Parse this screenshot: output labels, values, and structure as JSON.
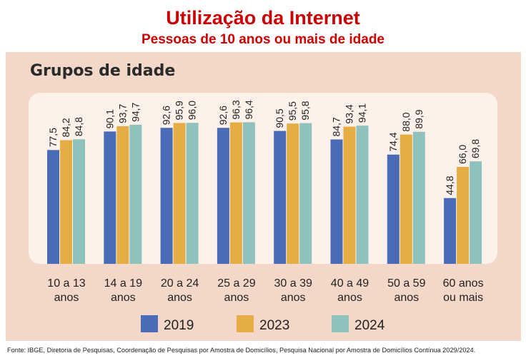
{
  "title": "Utilização da Internet",
  "subtitle": "Pessoas de 10 anos ou mais de idade",
  "panel_heading": "Grupos de idade",
  "source": "Fonte: IBGE, Diretoria de Pesquisas, Coordenação de Pesquisas por Amostra de Domicílios, Pesquisa Nacional por Amostra de Domicílios Contínua 2029/2024.",
  "chart_data": {
    "type": "bar",
    "title": "Utilização da Internet",
    "subtitle": "Pessoas de 10 anos ou mais de idade",
    "xlabel": "",
    "ylabel": "",
    "ylim": [
      0,
      100
    ],
    "grid": false,
    "legend_placement": "bottom",
    "categories": [
      [
        "10 a 13",
        "anos"
      ],
      [
        "14 a 19",
        "anos"
      ],
      [
        "20 a 24",
        "anos"
      ],
      [
        "25 a 29",
        "anos"
      ],
      [
        "30 a 39",
        "anos"
      ],
      [
        "40 a 49",
        "anos"
      ],
      [
        "50 a 59",
        "anos"
      ],
      [
        "60 anos",
        "ou mais"
      ]
    ],
    "series": [
      {
        "name": "2019",
        "color": "#4a6cb7",
        "values": [
          77.5,
          90.1,
          92.6,
          92.6,
          90.5,
          84.7,
          74.4,
          44.8
        ]
      },
      {
        "name": "2023",
        "color": "#e5ad44",
        "values": [
          84.2,
          93.7,
          95.9,
          96.3,
          95.5,
          93.4,
          88.0,
          66.0
        ]
      },
      {
        "name": "2024",
        "color": "#8fc2bc",
        "values": [
          84.8,
          94.7,
          96.0,
          96.4,
          95.8,
          94.1,
          89.9,
          69.8
        ]
      }
    ],
    "value_labels": [
      [
        "77,5",
        "90,1",
        "92,6",
        "92,6",
        "90,5",
        "84,7",
        "74,4",
        "44,8"
      ],
      [
        "84,2",
        "93,7",
        "95,9",
        "96,3",
        "95,5",
        "93,4",
        "88,0",
        "66,0"
      ],
      [
        "84,8",
        "94,7",
        "96,0",
        "96,4",
        "95,8",
        "94,1",
        "89,9",
        "69,8"
      ]
    ]
  }
}
